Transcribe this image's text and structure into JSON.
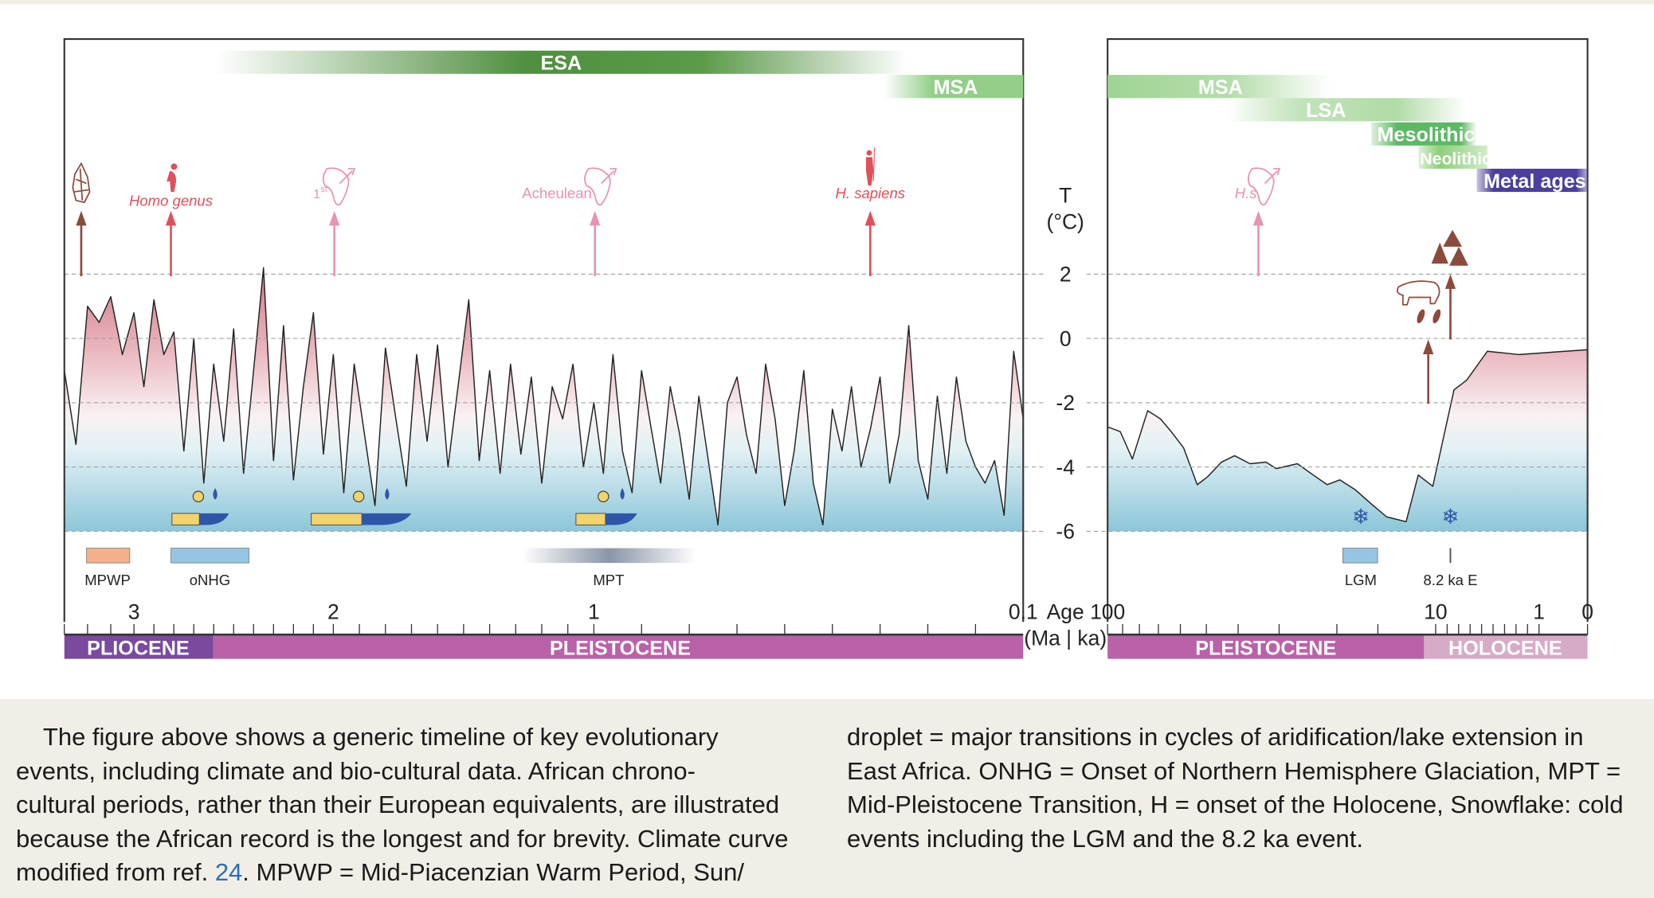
{
  "chart_data": {
    "type": "line",
    "title": "",
    "y_label": "T (°C)",
    "x_label": "Age (Ma | ka)",
    "ylim": [
      -6,
      2
    ],
    "y_ticks": [
      "2",
      "0",
      "-2",
      "-4",
      "-6"
    ],
    "grid": "horizontal dashed",
    "panels": [
      {
        "name": "Ma panel",
        "x_unit": "Ma",
        "xlim": [
          3.3,
          0.1
        ],
        "x_ticks": [
          "3",
          "2",
          "1",
          "0.1"
        ],
        "series": [
          {
            "name": "temperature",
            "age_ma": [
              3.3,
              3.25,
              3.2,
              3.15,
              3.1,
              3.05,
              3.0,
              2.95,
              2.9,
              2.85,
              2.8,
              2.75,
              2.7,
              2.65,
              2.6,
              2.55,
              2.5,
              2.45,
              2.4,
              2.35,
              2.3,
              2.25,
              2.2,
              2.15,
              2.1,
              2.05,
              2.0,
              1.96,
              1.92,
              1.88,
              1.84,
              1.8,
              1.76,
              1.72,
              1.68,
              1.64,
              1.6,
              1.56,
              1.52,
              1.48,
              1.44,
              1.4,
              1.36,
              1.32,
              1.28,
              1.24,
              1.2,
              1.16,
              1.12,
              1.08,
              1.04,
              1.0,
              0.98,
              0.96,
              0.94,
              0.92,
              0.9,
              0.88,
              0.86,
              0.84,
              0.82,
              0.8,
              0.78,
              0.76,
              0.74,
              0.72,
              0.7,
              0.68,
              0.66,
              0.64,
              0.62,
              0.6,
              0.58,
              0.56,
              0.54,
              0.52,
              0.5,
              0.48,
              0.46,
              0.44,
              0.42,
              0.4,
              0.38,
              0.36,
              0.34,
              0.32,
              0.3,
              0.28,
              0.26,
              0.24,
              0.22,
              0.2,
              0.18,
              0.16,
              0.14,
              0.12,
              0.1
            ],
            "temp_c": [
              -1.0,
              -3.3,
              1.0,
              0.5,
              1.3,
              -0.5,
              0.8,
              -1.5,
              1.2,
              -0.5,
              0.2,
              -3.5,
              0.0,
              -4.5,
              -0.8,
              -3.2,
              0.3,
              -4.2,
              -1.0,
              2.2,
              -3.8,
              0.4,
              -4.4,
              -1.5,
              0.8,
              -3.6,
              -0.5,
              -4.8,
              -0.8,
              -3.0,
              -5.2,
              -0.3,
              -2.5,
              -4.6,
              -0.5,
              -3.2,
              -0.2,
              -4.0,
              -1.4,
              1.2,
              -3.8,
              -1.0,
              -4.2,
              -0.8,
              -3.6,
              -1.2,
              -4.5,
              -1.5,
              -2.5,
              -0.8,
              -4.0,
              -2.0,
              -4.2,
              -0.5,
              -3.5,
              -4.8,
              -1.0,
              -2.8,
              -4.5,
              -1.5,
              -3.0,
              -5.0,
              -1.8,
              -3.8,
              -5.8,
              -2.0,
              -1.2,
              -3.0,
              -4.2,
              -0.8,
              -2.5,
              -5.2,
              -3.5,
              -1.0,
              -4.5,
              -5.8,
              -2.2,
              -3.5,
              -1.5,
              -4.0,
              -2.8,
              -1.2,
              -4.5,
              -3.0,
              0.4,
              -3.8,
              -5.0,
              -1.8,
              -4.2,
              -1.2,
              -3.2,
              -4.0,
              -4.5,
              -3.8,
              -5.5,
              -0.4,
              -2.5
            ]
          }
        ]
      },
      {
        "name": "ka panel",
        "x_unit": "ka",
        "xlim": [
          100,
          0
        ],
        "x_ticks": [
          "100",
          "10",
          "1",
          "0"
        ],
        "series": [
          {
            "name": "temperature",
            "age_ka": [
              100,
              91.5,
              84,
              75.5,
              69,
              64,
              58.7,
              53.3,
              49.5,
              45,
              41,
              36.8,
              32.9,
              30.6,
              26.4,
              23.6,
              21.4,
              19.6,
              17.6,
              15.7,
              14.1,
              12.3,
              11.3,
              10.2,
              8.4,
              7.3,
              5.5,
              2.75,
              0
            ],
            "temp_c": [
              -2.75,
              -2.9,
              -3.75,
              -2.25,
              -2.5,
              -2.9,
              -3.4,
              -4.55,
              -4.3,
              -3.85,
              -3.65,
              -3.9,
              -3.85,
              -4.05,
              -3.9,
              -4.25,
              -4.55,
              -4.4,
              -4.7,
              -5.15,
              -5.55,
              -5.7,
              -4.25,
              -4.6,
              -1.6,
              -1.3,
              -0.4,
              -0.5,
              -0.35
            ]
          }
        ]
      }
    ]
  },
  "periods": {
    "esa": "ESA",
    "msa_left": "MSA",
    "msa_right": "MSA",
    "lsa": "LSA",
    "mesolithic": "Mesolithic",
    "neolithic": "Neolithic",
    "metal": "Metal ages"
  },
  "events": {
    "homo": "Homo genus",
    "first": "1",
    "first_sup": "st",
    "acheulean": "Acheulean",
    "sapiens": "H. sapiens",
    "hs": "H.s."
  },
  "legend": {
    "mpwp": "MPWP",
    "onhg": "oNHG",
    "mpt": "MPT",
    "lgm": "LGM",
    "e82": "8.2 ka E"
  },
  "axis": {
    "t": "T",
    "unit": "(°C)",
    "age": "Age",
    "ma_ka": "(Ma | ka)"
  },
  "epochs": {
    "pliocene": "PLIOCENE",
    "pleistocene_left": "PLEISTOCENE",
    "pleistocene_right": "PLEISTOCENE",
    "holocene": "HOLOCENE"
  },
  "colors": {
    "esa": "#4f8f3f",
    "msa": "#93cf88",
    "mesolithic": "#5cb863",
    "neolithic": "#8dcf7a",
    "metal": "#4a3f9c",
    "pliocene": "#7a4a9e",
    "pleistocene": "#b962a8",
    "holocene": "#d6abc8",
    "red": "#e0505a",
    "pink": "#e892b4",
    "brown": "#8b4a3c"
  },
  "caption": {
    "left_lines": [
      "    The figure above shows a generic timeline of key evolutionary",
      "events, including climate and bio-cultural data. African chrono-",
      "cultural periods, rather than their European equivalents, are illustrated",
      "because the African record is the longest and for brevity. Climate curve"
    ],
    "left_last_pre": "modified from ref. ",
    "ref": "24",
    "left_last_post": ". MPWP = Mid-Piacenzian Warm Period, Sun/",
    "right_lines": [
      "droplet = major transitions in cycles of aridification/lake extension in",
      "East Africa. ONHG = Onset of Northern Hemisphere Glaciation, MPT =",
      "Mid-Pleistocene Transition, H = onset of the Holocene, Snowflake: cold",
      "events including the LGM and the 8.2 ka event."
    ]
  }
}
